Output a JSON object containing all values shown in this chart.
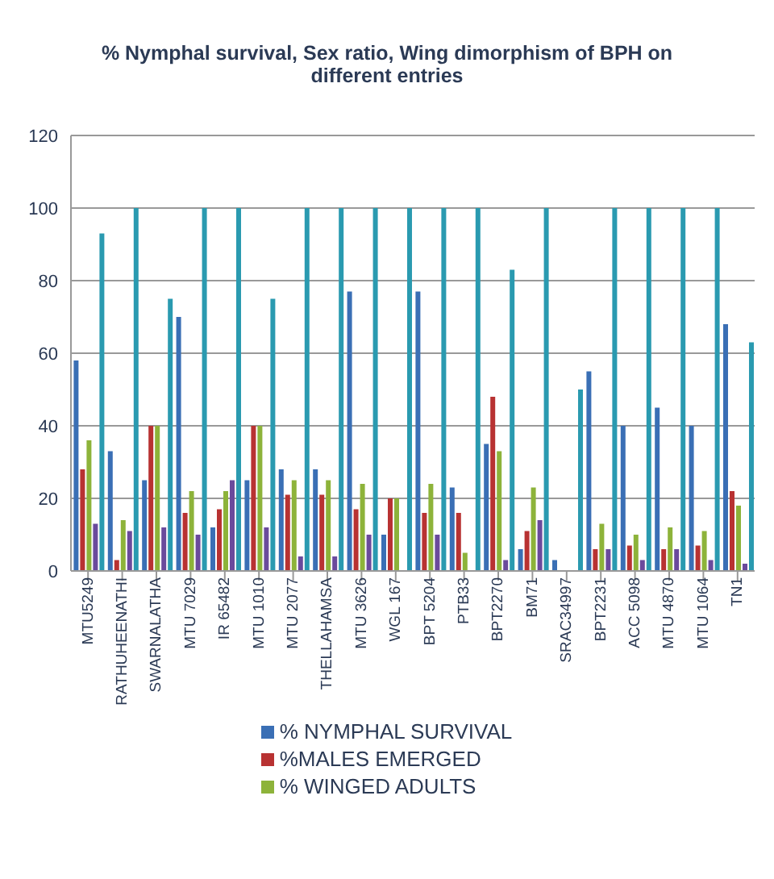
{
  "chart_data": {
    "type": "bar",
    "title": "% Nymphal survival, Sex ratio, Wing dimorphism of BPH on different entries",
    "categories": [
      "MTU5249",
      "RATHUHEENATHI",
      "SWARNALATHA",
      "MTU 7029",
      "IR 65482",
      "MTU 1010",
      "MTU 2077",
      "THELLAHAMSA",
      "MTU 3626",
      "WGL 167",
      "BPT 5204",
      "PTB33",
      "BPT2270",
      "BM71",
      "SRAC34997",
      "BPT2231",
      "ACC 5098",
      "MTU 4870",
      "MTU 1064",
      "TN1"
    ],
    "series": [
      {
        "name": "% NYMPHAL SURVIVAL",
        "color": "#3a6fb5",
        "values": [
          58,
          33,
          25,
          70,
          12,
          25,
          28,
          28,
          77,
          10,
          77,
          23,
          35,
          6,
          3,
          55,
          40,
          45,
          40,
          68
        ]
      },
      {
        "name": "%MALES EMERGED",
        "color": "#b83232",
        "values": [
          28,
          3,
          40,
          16,
          17,
          40,
          21,
          21,
          17,
          20,
          16,
          16,
          48,
          11,
          0,
          6,
          7,
          6,
          7,
          22
        ]
      },
      {
        "name": "% WINGED ADULTS",
        "color": "#8db33a",
        "values": [
          36,
          14,
          40,
          22,
          22,
          40,
          25,
          25,
          24,
          20,
          24,
          5,
          33,
          23,
          0,
          13,
          10,
          12,
          11,
          18
        ]
      },
      {
        "color": "#6a4a9c",
        "values": [
          13,
          11,
          12,
          10,
          25,
          12,
          4,
          4,
          10,
          0,
          10,
          0,
          3,
          14,
          0,
          6,
          3,
          6,
          3,
          2
        ]
      },
      {
        "color": "#2a9ab0",
        "values": [
          93,
          100,
          75,
          100,
          100,
          75,
          100,
          100,
          100,
          100,
          100,
          100,
          83,
          100,
          50,
          100,
          100,
          100,
          100,
          63
        ]
      }
    ],
    "ylim": [
      0,
      120
    ],
    "yticks": [
      0,
      20,
      40,
      60,
      80,
      100,
      120
    ],
    "grid": "y",
    "legend": "bottom"
  }
}
